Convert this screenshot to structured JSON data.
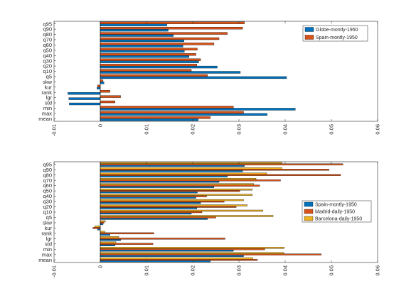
{
  "chart_data": [
    {
      "type": "bar",
      "orientation": "horizontal",
      "categories": [
        "q95",
        "q90",
        "q80",
        "q70",
        "q60",
        "q50",
        "q40",
        "q30",
        "q20",
        "q10",
        "q5",
        "skw",
        "kur",
        "rank",
        "lgr",
        "std",
        "min",
        "max",
        "mean"
      ],
      "xlim": [
        -0.01,
        0.06
      ],
      "xticks": [
        -0.01,
        0,
        0.01,
        0.02,
        0.03,
        0.04,
        0.05,
        0.06
      ],
      "xtick_labels": [
        "-0.01",
        "0",
        "0.01",
        "0.02",
        "0.03",
        "0.04",
        "0.05",
        "0.06"
      ],
      "legend_position": "top-right",
      "series": [
        {
          "name": "Globe-montly-1950",
          "color": "#0072bd",
          "values": [
            0.0144,
            0.0147,
            0.0158,
            0.0181,
            0.0179,
            0.0182,
            0.0192,
            0.0213,
            0.0253,
            0.0303,
            0.0403,
            0.0008,
            -0.0007,
            -0.007,
            -0.0068,
            -0.0067,
            0.0422,
            0.0361,
            0.0212
          ]
        },
        {
          "name": "Spain-montly-1950",
          "color": "#d95319",
          "values": [
            0.0312,
            0.0308,
            0.0275,
            0.0257,
            0.0246,
            0.021,
            0.0207,
            0.0217,
            0.0209,
            0.0197,
            0.0232,
            0.0006,
            -0.0006,
            0.0021,
            0.0044,
            0.0032,
            0.0288,
            0.031,
            0.0238
          ]
        }
      ]
    },
    {
      "type": "bar",
      "orientation": "horizontal",
      "categories": [
        "q95",
        "q90",
        "q80",
        "q70",
        "q60",
        "q50",
        "q40",
        "q30",
        "q20",
        "q10",
        "q5",
        "skw",
        "kur",
        "rank",
        "lgr",
        "std",
        "min",
        "max",
        "mean"
      ],
      "xlim": [
        -0.01,
        0.06
      ],
      "xticks": [
        -0.01,
        0,
        0.01,
        0.02,
        0.03,
        0.04,
        0.05,
        0.06
      ],
      "xtick_labels": [
        "-0.01",
        "0",
        "0.01",
        "0.02",
        "0.03",
        "0.04",
        "0.05",
        "0.06"
      ],
      "legend_position": "right",
      "series": [
        {
          "name": "Spain-montly-1950",
          "color": "#0072bd",
          "values": [
            0.0312,
            0.0308,
            0.0275,
            0.0257,
            0.0246,
            0.021,
            0.0207,
            0.0217,
            0.0209,
            0.0197,
            0.0232,
            0.0006,
            -0.0006,
            0.0021,
            0.0044,
            0.0032,
            0.0288,
            0.031,
            0.0238
          ]
        },
        {
          "name": "Madrid-daily-1950",
          "color": "#d95319",
          "values": [
            0.0525,
            0.0495,
            0.052,
            0.039,
            0.0345,
            0.0302,
            0.023,
            0.0268,
            0.0294,
            0.022,
            0.025,
            0.0008,
            -0.0016,
            0.0116,
            0.027,
            0.0114,
            0.0356,
            0.0478,
            0.034
          ]
        },
        {
          "name": "Barcelona-daily-1950",
          "color": "#edb120",
          "values": [
            0.0393,
            0.0393,
            0.036,
            0.0337,
            0.0332,
            0.0329,
            0.0329,
            0.031,
            0.0318,
            0.0352,
            0.0374,
            0.0011,
            -0.0012,
            0.001,
            0.004,
            0.0034,
            0.0398,
            0.0397,
            0.033
          ]
        }
      ]
    }
  ]
}
